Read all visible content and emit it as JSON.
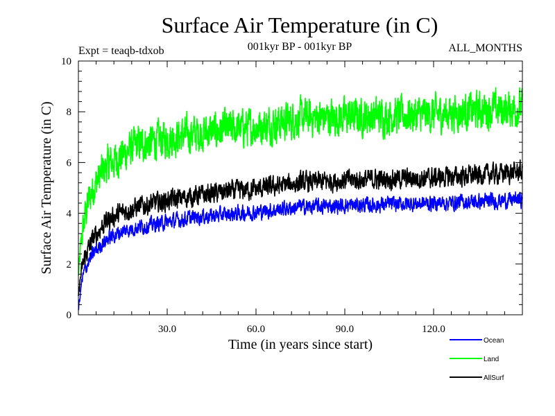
{
  "chart_data": {
    "type": "line",
    "title": "Surface Air Temperature (in C)",
    "subtitle_left": "Expt = teaqb-tdxob",
    "subtitle_center": "001kyr BP - 001kyr BP",
    "subtitle_right": "ALL_MONTHS",
    "xlabel": "Time (in years since start)",
    "ylabel": "Surface Air Temperature (in C)",
    "xlim": [
      0,
      150
    ],
    "ylim": [
      0,
      10
    ],
    "x_ticks": [
      30,
      60,
      90,
      120
    ],
    "x_tick_labels": [
      "30.0",
      "60.0",
      "90.0",
      "120.0"
    ],
    "y_ticks": [
      0,
      2,
      4,
      6,
      8,
      10
    ],
    "y_tick_labels": [
      "0",
      "2",
      "4",
      "6",
      "8",
      "10"
    ],
    "series": [
      {
        "name": "Ocean",
        "color": "#0000ff",
        "trend_x": [
          0,
          1,
          2,
          3,
          5,
          8,
          10,
          15,
          20,
          30,
          40,
          50,
          60,
          75,
          90,
          105,
          120,
          135,
          150
        ],
        "trend_y": [
          0.2,
          1.2,
          1.7,
          2.0,
          2.4,
          2.8,
          3.0,
          3.3,
          3.45,
          3.65,
          3.85,
          3.95,
          4.05,
          4.25,
          4.3,
          4.35,
          4.4,
          4.45,
          4.55
        ],
        "noise_amplitude": 0.45
      },
      {
        "name": "Land",
        "color": "#00ff00",
        "trend_x": [
          0,
          1,
          2,
          3,
          5,
          8,
          10,
          15,
          20,
          30,
          40,
          50,
          60,
          75,
          90,
          105,
          120,
          135,
          150
        ],
        "trend_y": [
          1.5,
          2.9,
          3.7,
          4.3,
          5.0,
          5.6,
          5.9,
          6.3,
          6.7,
          6.95,
          7.15,
          7.3,
          7.4,
          7.75,
          7.8,
          7.85,
          7.9,
          8.05,
          8.15
        ],
        "noise_amplitude": 1.1
      },
      {
        "name": "AllSurf",
        "color": "#000000",
        "trend_x": [
          0,
          1,
          2,
          3,
          5,
          8,
          10,
          15,
          20,
          30,
          40,
          50,
          60,
          75,
          90,
          105,
          120,
          135,
          150
        ],
        "trend_y": [
          0.8,
          1.7,
          2.2,
          2.5,
          3.0,
          3.5,
          3.75,
          4.05,
          4.25,
          4.5,
          4.7,
          4.85,
          4.95,
          5.2,
          5.3,
          5.35,
          5.4,
          5.5,
          5.65
        ],
        "noise_amplitude": 0.6
      }
    ],
    "legend": [
      {
        "label": "Ocean",
        "color": "#0000ff"
      },
      {
        "label": "Land",
        "color": "#00ff00"
      },
      {
        "label": "AllSurf",
        "color": "#000000"
      }
    ],
    "legend_position": "bottom-right"
  }
}
